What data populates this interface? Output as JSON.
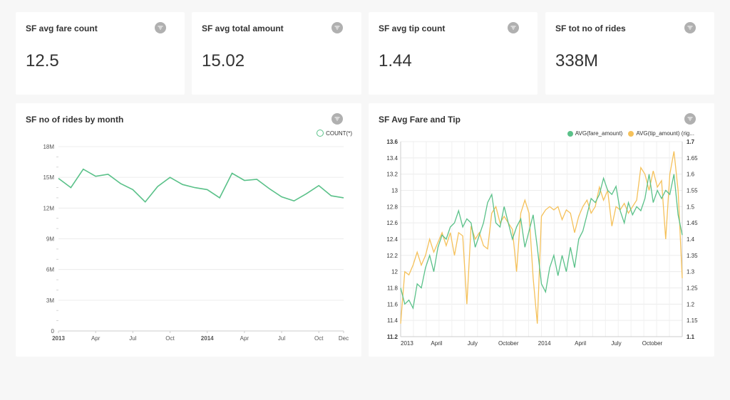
{
  "cards": [
    {
      "title": "SF avg fare count",
      "value": "12.5"
    },
    {
      "title": "SF avg total amount",
      "value": "15.02"
    },
    {
      "title": "SF avg tip count",
      "value": "1.44"
    },
    {
      "title": "SF tot no of rides",
      "value": "338M"
    }
  ],
  "icons": {
    "filter": "filter-icon"
  },
  "colors": {
    "teal": "#5ac189",
    "gold": "#f5c15a",
    "grid": "#ececec",
    "text": "#333333"
  },
  "ridesChart": {
    "title": "SF no of rides by month",
    "legend": "COUNT(*)"
  },
  "fareTipChart": {
    "title": "SF Avg Fare and Tip",
    "legendLeft": "AVG(fare_amount)",
    "legendRight": "AVG(tip_amount) (rig..."
  },
  "chart_data": [
    {
      "type": "line",
      "title": "SF no of rides by month",
      "series": [
        {
          "name": "COUNT(*)",
          "values": [
            14.9,
            14.0,
            15.8,
            15.1,
            15.3,
            14.4,
            13.8,
            12.6,
            14.1,
            15.0,
            14.3,
            14.0,
            13.8,
            13.0,
            15.4,
            14.7,
            14.8,
            13.9,
            13.1,
            12.7,
            13.4,
            14.2,
            13.2,
            13.0
          ]
        }
      ],
      "x": [
        "2013-01",
        "2013-02",
        "2013-03",
        "2013-04",
        "2013-05",
        "2013-06",
        "2013-07",
        "2013-08",
        "2013-09",
        "2013-10",
        "2013-11",
        "2013-12",
        "2014-01",
        "2014-02",
        "2014-03",
        "2014-04",
        "2014-05",
        "2014-06",
        "2014-07",
        "2014-08",
        "2014-09",
        "2014-10",
        "2014-11",
        "2014-12"
      ],
      "value_unit": "M",
      "ylim": [
        0,
        18
      ],
      "yticks": [
        "0",
        "3M",
        "6M",
        "9M",
        "12M",
        "15M",
        "18M"
      ],
      "xticks": [
        "2013",
        "Apr",
        "Jul",
        "Oct",
        "2014",
        "Apr",
        "Jul",
        "Oct",
        "Dec"
      ],
      "grid": true,
      "legend": "top-right"
    },
    {
      "type": "line",
      "title": "SF Avg Fare and Tip",
      "series": [
        {
          "name": "AVG(fare_amount)",
          "axis": "left",
          "values": [
            11.8,
            11.6,
            11.65,
            11.55,
            11.85,
            11.8,
            12.05,
            12.2,
            12.0,
            12.3,
            12.45,
            12.4,
            12.55,
            12.6,
            12.75,
            12.55,
            12.65,
            12.6,
            12.3,
            12.45,
            12.6,
            12.85,
            12.95,
            12.6,
            12.55,
            12.8,
            12.6,
            12.4,
            12.55,
            12.65,
            12.3,
            12.5,
            12.7,
            12.3,
            11.85,
            11.75,
            12.05,
            12.2,
            11.95,
            12.2,
            12.0,
            12.3,
            12.05,
            12.4,
            12.5,
            12.7,
            12.9,
            12.85,
            12.95,
            13.15,
            13.0,
            12.95,
            13.05,
            12.75,
            12.6,
            12.85,
            12.7,
            12.8,
            12.75,
            12.9,
            13.2,
            12.85,
            13.0,
            12.9,
            13.0,
            12.95,
            13.2,
            12.7,
            12.45
          ]
        },
        {
          "name": "AVG(tip_amount)",
          "axis": "right",
          "values": [
            1.14,
            1.3,
            1.29,
            1.32,
            1.36,
            1.32,
            1.35,
            1.4,
            1.36,
            1.39,
            1.42,
            1.38,
            1.42,
            1.35,
            1.42,
            1.41,
            1.2,
            1.44,
            1.4,
            1.42,
            1.38,
            1.37,
            1.48,
            1.5,
            1.45,
            1.47,
            1.45,
            1.43,
            1.3,
            1.48,
            1.52,
            1.48,
            1.28,
            1.14,
            1.47,
            1.49,
            1.5,
            1.49,
            1.5,
            1.46,
            1.49,
            1.48,
            1.42,
            1.47,
            1.5,
            1.52,
            1.48,
            1.5,
            1.56,
            1.52,
            1.55,
            1.44,
            1.5,
            1.49,
            1.51,
            1.48,
            1.5,
            1.52,
            1.62,
            1.6,
            1.55,
            1.61,
            1.56,
            1.58,
            1.4,
            1.6,
            1.67,
            1.55,
            1.28
          ]
        }
      ],
      "x_start": "2013-01",
      "x_end": "2014-12",
      "ylim_left": [
        11.2,
        13.6
      ],
      "ylim_right": [
        1.1,
        1.7
      ],
      "yticks_left": [
        "11.2",
        "11.4",
        "11.6",
        "11.8",
        "12",
        "12.2",
        "12.4",
        "12.6",
        "12.8",
        "13",
        "13.2",
        "13.4",
        "13.6"
      ],
      "yticks_right": [
        "1.1",
        "1.15",
        "1.2",
        "1.25",
        "1.3",
        "1.35",
        "1.4",
        "1.45",
        "1.5",
        "1.55",
        "1.6",
        "1.65",
        "1.7"
      ],
      "xticks": [
        "2013",
        "April",
        "July",
        "October",
        "2014",
        "April",
        "July",
        "October"
      ],
      "grid": true,
      "legend": "top-right"
    }
  ]
}
